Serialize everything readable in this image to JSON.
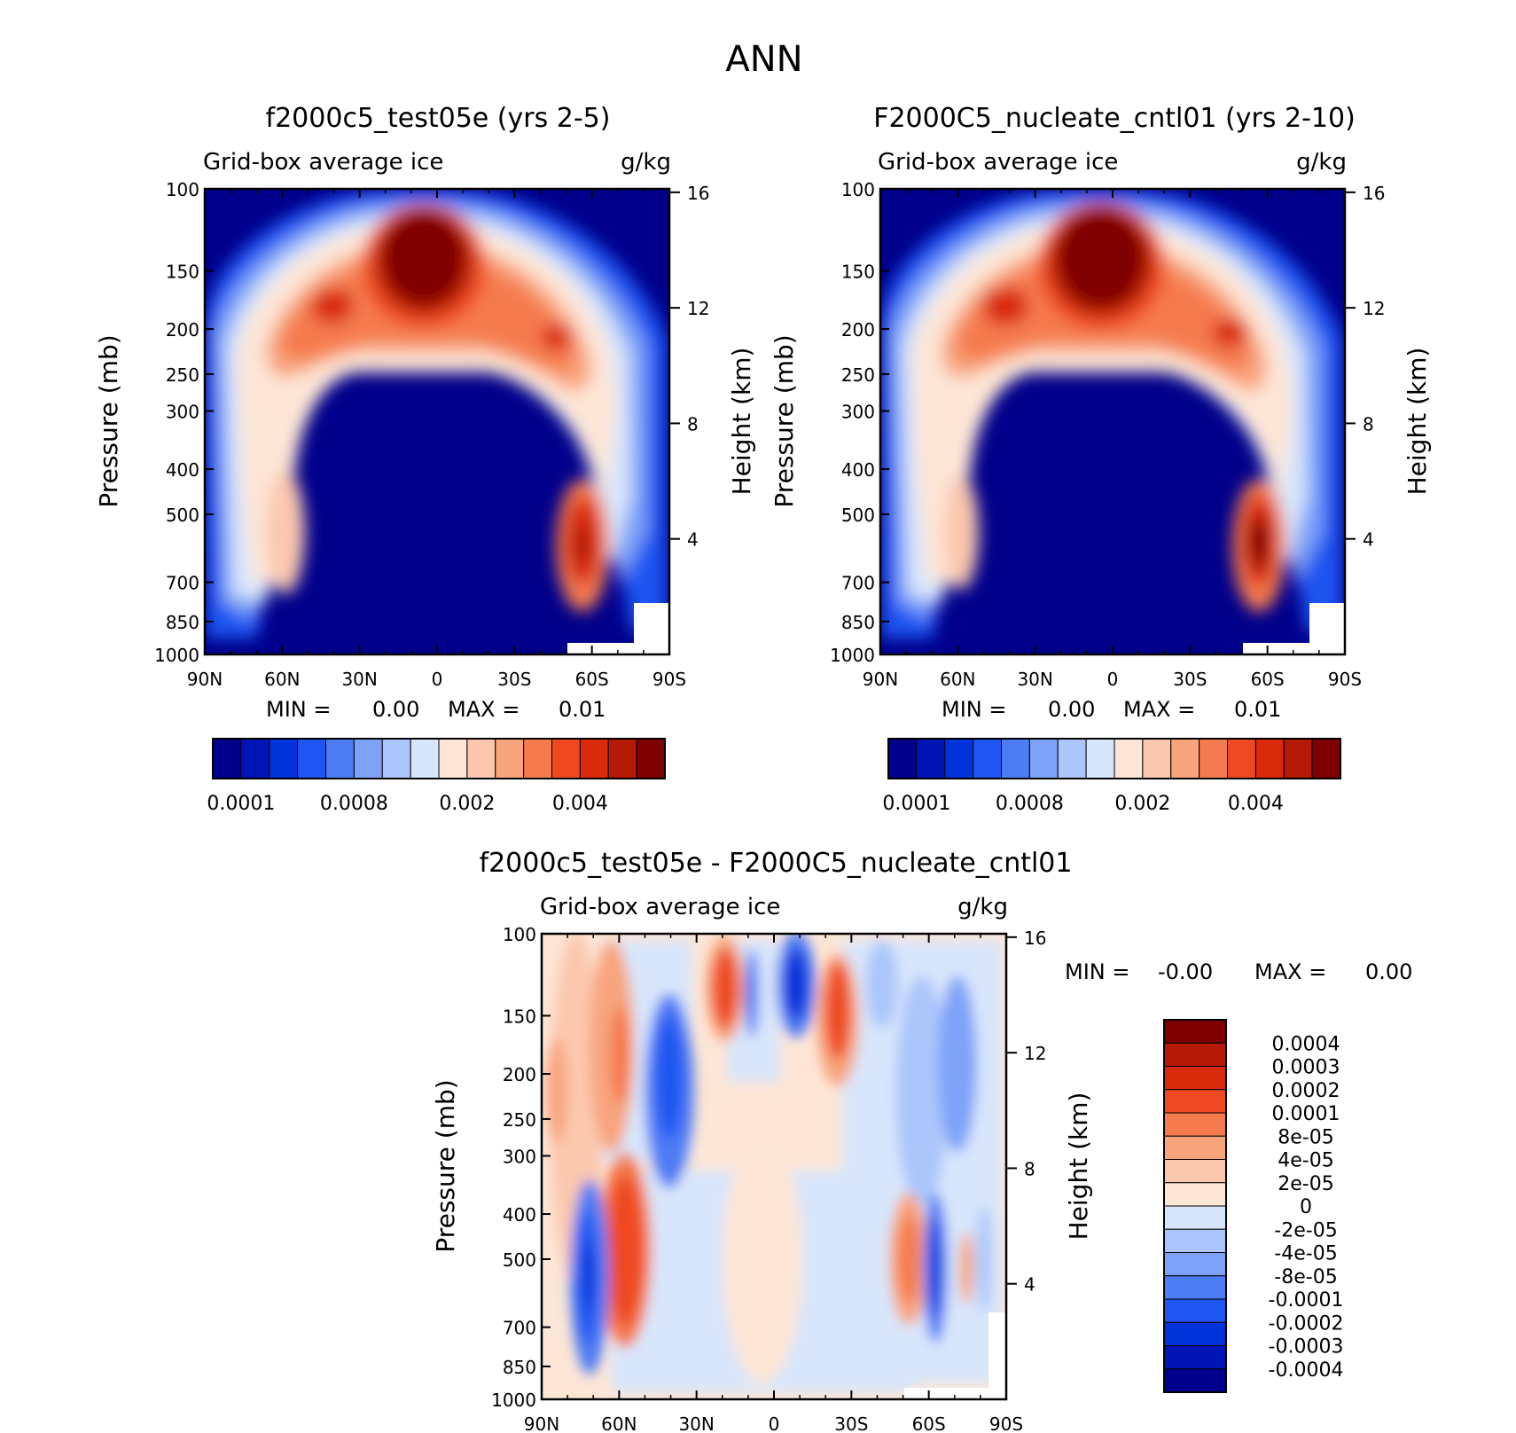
{
  "figure": {
    "title": "ANN"
  },
  "colors": {
    "seq": [
      "#00008b",
      "#0015b5",
      "#0033d9",
      "#1f55f0",
      "#4d7cf5",
      "#7da2f8",
      "#abc6fa",
      "#d8e6fb",
      "#fde6d6",
      "#fbc8ae",
      "#f8a47d",
      "#f57a4e",
      "#ee4a22",
      "#d92a0c",
      "#b41a06",
      "#7f0000"
    ],
    "diff": [
      "#7f0000",
      "#b41a06",
      "#d92a0c",
      "#ee4a22",
      "#f57a4e",
      "#f8a47d",
      "#fbc8ae",
      "#fde6d6",
      "#d8e6fb",
      "#abc6fa",
      "#7da2f8",
      "#4d7cf5",
      "#1f55f0",
      "#0033d9",
      "#0015b5",
      "#00008b"
    ]
  },
  "chart_data": [
    {
      "type": "heatmap",
      "title": "f2000c5_test05e (yrs 2-5)",
      "subtitle_left": "Grid-box average ice",
      "subtitle_right": "g/kg",
      "ylabel": "Pressure (mb)",
      "ylabel_right": "Height (km)",
      "x_ticks": [
        "90N",
        "60N",
        "30N",
        "0",
        "30S",
        "60S",
        "90S"
      ],
      "y_ticks": [
        "100",
        "150",
        "200",
        "250",
        "300",
        "400",
        "500",
        "700",
        "850",
        "1000"
      ],
      "y_ticks_right": [
        "16",
        "12",
        "8",
        "4"
      ],
      "stats": {
        "min_label": "MIN =",
        "min_value": "0.00",
        "max_label": "MAX =",
        "max_value": "0.01"
      },
      "colorbar_labels": [
        "0.0001",
        "0.0008",
        "0.002",
        "0.004"
      ],
      "ylim": [
        1000,
        100
      ],
      "xlim": [
        90,
        -90
      ]
    },
    {
      "type": "heatmap",
      "title": "F2000C5_nucleate_cntl01 (yrs 2-10)",
      "subtitle_left": "Grid-box average ice",
      "subtitle_right": "g/kg",
      "ylabel": "Pressure (mb)",
      "ylabel_right": "Height (km)",
      "x_ticks": [
        "90N",
        "60N",
        "30N",
        "0",
        "30S",
        "60S",
        "90S"
      ],
      "y_ticks": [
        "100",
        "150",
        "200",
        "250",
        "300",
        "400",
        "500",
        "700",
        "850",
        "1000"
      ],
      "y_ticks_right": [
        "16",
        "12",
        "8",
        "4"
      ],
      "stats": {
        "min_label": "MIN =",
        "min_value": "0.00",
        "max_label": "MAX =",
        "max_value": "0.01"
      },
      "colorbar_labels": [
        "0.0001",
        "0.0008",
        "0.002",
        "0.004"
      ],
      "ylim": [
        1000,
        100
      ],
      "xlim": [
        90,
        -90
      ]
    },
    {
      "type": "heatmap",
      "title": "f2000c5_test05e - F2000C5_nucleate_cntl01",
      "subtitle_left": "Grid-box average ice",
      "subtitle_right": "g/kg",
      "ylabel": "Pressure (mb)",
      "ylabel_right": "Height (km)",
      "x_ticks": [
        "90N",
        "60N",
        "30N",
        "0",
        "30S",
        "60S",
        "90S"
      ],
      "y_ticks": [
        "100",
        "150",
        "200",
        "250",
        "300",
        "400",
        "500",
        "700",
        "850",
        "1000"
      ],
      "y_ticks_right": [
        "16",
        "12",
        "8",
        "4"
      ],
      "stats": {
        "min_label": "MIN =",
        "min_value": "-0.00",
        "max_label": "MAX =",
        "max_value": "0.00"
      },
      "colorbar_labels": [
        "0.0004",
        "0.0003",
        "0.0002",
        "0.0001",
        "8e-05",
        "4e-05",
        "2e-05",
        "0",
        "-2e-05",
        "-4e-05",
        "-8e-05",
        "-0.0001",
        "-0.0002",
        "-0.0003",
        "-0.0004"
      ],
      "ylim": [
        1000,
        100
      ],
      "xlim": [
        90,
        -90
      ]
    }
  ]
}
